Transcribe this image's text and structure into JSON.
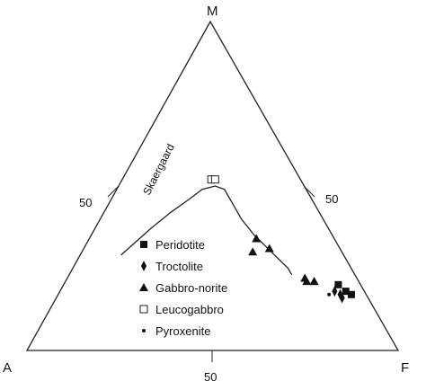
{
  "chart_data": {
    "type": "scatter",
    "diagram": "ternary",
    "vertices": {
      "top": "M",
      "left": "A",
      "right": "F"
    },
    "tick_labels": {
      "left_edge": "50",
      "right_edge": "50",
      "bottom_edge": "50"
    },
    "trend_curve": {
      "label": "Skaergaard",
      "points": [
        {
          "A": 0.6,
          "F": 0.11,
          "M": 0.29
        },
        {
          "A": 0.48,
          "F": 0.15,
          "M": 0.37
        },
        {
          "A": 0.4,
          "F": 0.18,
          "M": 0.42
        },
        {
          "A": 0.33,
          "F": 0.21,
          "M": 0.46
        },
        {
          "A": 0.28,
          "F": 0.23,
          "M": 0.49
        },
        {
          "A": 0.24,
          "F": 0.26,
          "M": 0.5
        },
        {
          "A": 0.22,
          "F": 0.29,
          "M": 0.49
        },
        {
          "A": 0.22,
          "F": 0.33,
          "M": 0.45
        },
        {
          "A": 0.22,
          "F": 0.38,
          "M": 0.4
        },
        {
          "A": 0.21,
          "F": 0.44,
          "M": 0.35
        },
        {
          "A": 0.19,
          "F": 0.51,
          "M": 0.3
        },
        {
          "A": 0.17,
          "F": 0.58,
          "M": 0.25
        },
        {
          "A": 0.17,
          "F": 0.6,
          "M": 0.23
        }
      ]
    },
    "series": [
      {
        "name": "Peridotite",
        "marker": "square",
        "points": [
          {
            "A": 0.06,
            "F": 0.74,
            "M": 0.2
          },
          {
            "A": 0.05,
            "F": 0.77,
            "M": 0.18
          },
          {
            "A": 0.04,
            "F": 0.79,
            "M": 0.17
          }
        ]
      },
      {
        "name": "Troctolite",
        "marker": "diamond",
        "points": [
          {
            "A": 0.08,
            "F": 0.74,
            "M": 0.18
          },
          {
            "A": 0.07,
            "F": 0.77,
            "M": 0.16
          },
          {
            "A": 0.07,
            "F": 0.76,
            "M": 0.17
          }
        ]
      },
      {
        "name": "Gabbro-norite",
        "marker": "triangle",
        "points": [
          {
            "A": 0.24,
            "F": 0.46,
            "M": 0.3
          },
          {
            "A": 0.21,
            "F": 0.45,
            "M": 0.34
          },
          {
            "A": 0.19,
            "F": 0.5,
            "M": 0.31
          },
          {
            "A": 0.14,
            "F": 0.65,
            "M": 0.21
          },
          {
            "A": 0.12,
            "F": 0.67,
            "M": 0.21
          },
          {
            "A": 0.14,
            "F": 0.64,
            "M": 0.22
          },
          {
            "A": 0.12,
            "F": 0.67,
            "M": 0.21
          }
        ]
      },
      {
        "name": "Leucogabbro",
        "marker": "open-square",
        "points": [
          {
            "A": 0.24,
            "F": 0.24,
            "M": 0.52
          },
          {
            "A": 0.23,
            "F": 0.25,
            "M": 0.52
          }
        ]
      },
      {
        "name": "Pyroxenite",
        "marker": "dot",
        "points": [
          {
            "A": 0.1,
            "F": 0.73,
            "M": 0.17
          }
        ]
      }
    ],
    "legend_position": "center-left",
    "grid": false
  }
}
